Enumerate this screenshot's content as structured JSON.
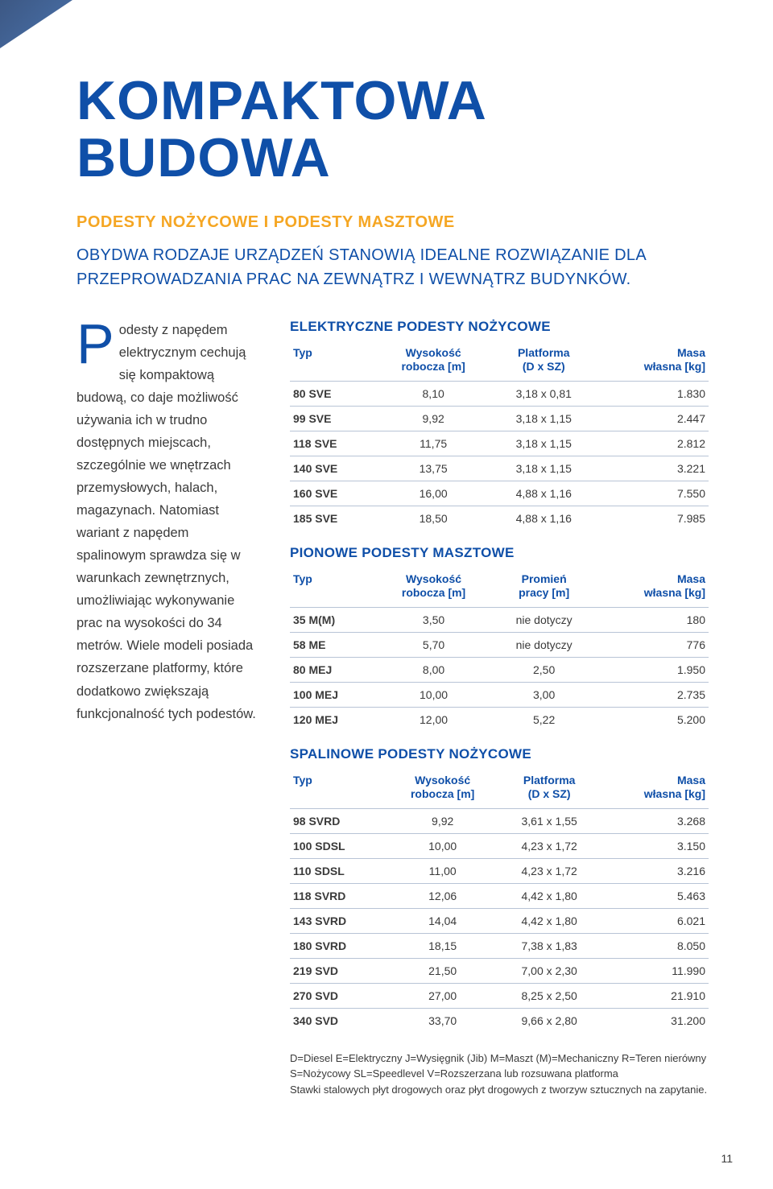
{
  "colors": {
    "brand_blue": "#0f4fa8",
    "accent_orange": "#f5a623",
    "text": "#3a3a3a",
    "rule": "#b8c4d6",
    "bg": "#ffffff"
  },
  "title": "KOMPAKTOWA BUDOWA",
  "subhead": "PODESTY NOŻYCOWE I PODESTY MASZTOWE",
  "intro": "OBYDWA RODZAJE URZĄDZEŃ STANOWIĄ IDEALNE ROZWIĄZANIE DLA PRZEPROWADZANIA PRAC NA ZEWNĄTRZ I WEWNĄTRZ BUDYNKÓW.",
  "dropcap": "P",
  "body": "odesty z napędem elektrycznym cechują się kompaktową budową, co daje możliwość używania ich w trudno dostępnych miejscach, szczególnie we wnętrzach przemysłowych, halach, magazynach. Natomiast wariant z napędem spalinowym sprawdza się w warunkach zewnętrznych, umożliwiając wykonywanie prac na wysokości do 34 metrów. Wiele modeli posiada rozszerzane platformy, które dodatkowo zwiększają funkcjonalność tych podestów.",
  "tables": [
    {
      "title": "ELEKTRYCZNE PODESTY NOŻYCOWE",
      "columns": [
        "Typ",
        "Wysokość\nrobocza [m]",
        "Platforma\n(D x SZ)",
        "Masa\nwłasna [kg]"
      ],
      "rows": [
        [
          "80 SVE",
          "8,10",
          "3,18 x 0,81",
          "1.830"
        ],
        [
          "99 SVE",
          "9,92",
          "3,18 x 1,15",
          "2.447"
        ],
        [
          "118 SVE",
          "11,75",
          "3,18 x 1,15",
          "2.812"
        ],
        [
          "140 SVE",
          "13,75",
          "3,18 x 1,15",
          "3.221"
        ],
        [
          "160 SVE",
          "16,00",
          "4,88 x 1,16",
          "7.550"
        ],
        [
          "185 SVE",
          "18,50",
          "4,88 x 1,16",
          "7.985"
        ]
      ]
    },
    {
      "title": "PIONOWE PODESTY MASZTOWE",
      "columns": [
        "Typ",
        "Wysokość\nrobocza [m]",
        "Promień\npracy [m]",
        "Masa\nwłasna [kg]"
      ],
      "rows": [
        [
          "35 M(M)",
          "3,50",
          "nie dotyczy",
          "180"
        ],
        [
          "58 ME",
          "5,70",
          "nie dotyczy",
          "776"
        ],
        [
          "80 MEJ",
          "8,00",
          "2,50",
          "1.950"
        ],
        [
          "100 MEJ",
          "10,00",
          "3,00",
          "2.735"
        ],
        [
          "120 MEJ",
          "12,00",
          "5,22",
          "5.200"
        ]
      ]
    },
    {
      "title": "SPALINOWE PODESTY NOŻYCOWE",
      "columns": [
        "Typ",
        "Wysokość\nrobocza [m]",
        "Platforma\n(D x SZ)",
        "Masa\nwłasna [kg]"
      ],
      "rows": [
        [
          "98 SVRD",
          "9,92",
          "3,61 x 1,55",
          "3.268"
        ],
        [
          "100 SDSL",
          "10,00",
          "4,23 x 1,72",
          "3.150"
        ],
        [
          "110 SDSL",
          "11,00",
          "4,23 x 1,72",
          "3.216"
        ],
        [
          "118 SVRD",
          "12,06",
          "4,42 x 1,80",
          "5.463"
        ],
        [
          "143 SVRD",
          "14,04",
          "4,42 x 1,80",
          "6.021"
        ],
        [
          "180 SVRD",
          "18,15",
          "7,38 x 1,83",
          "8.050"
        ],
        [
          "219 SVD",
          "21,50",
          "7,00 x 2,30",
          "11.990"
        ],
        [
          "270 SVD",
          "27,00",
          "8,25 x 2,50",
          "21.910"
        ],
        [
          "340 SVD",
          "33,70",
          "9,66 x 2,80",
          "31.200"
        ]
      ]
    }
  ],
  "footnotes": [
    "D=Diesel E=Elektryczny J=Wysięgnik (Jib)  M=Maszt (M)=Mechaniczny R=Teren nierówny",
    "S=Nożycowy SL=Speedlevel V=Rozszerzana lub rozsuwana platforma",
    "Stawki stalowych płyt drogowych oraz płyt drogowych z tworzyw sztucznych na zapytanie."
  ],
  "page_number": "11"
}
